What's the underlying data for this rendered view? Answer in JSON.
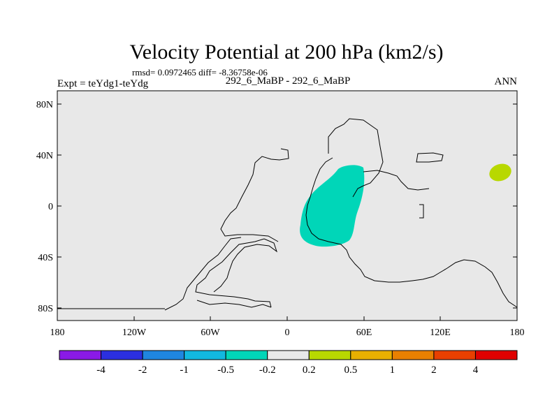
{
  "title": "Velocity Potential at 200 hPa (km2/s)",
  "stats": "rmsd= 0.0972465 diff= -8.36758e-06",
  "left_label": "Expt = teYdg1-teYdg",
  "center_label": "292_6_MaBP - 292_6_MaBP",
  "right_label": "ANN",
  "y_ticks": [
    "80N",
    "40N",
    "0",
    "40S",
    "80S"
  ],
  "x_ticks": [
    "180",
    "120W",
    "60W",
    "0",
    "60E",
    "120E",
    "180"
  ],
  "colorbar": {
    "colors": [
      "#8a1ae6",
      "#2b2fe0",
      "#1f86e0",
      "#12b8e0",
      "#00d6b8",
      "#e8e8e8",
      "#b8d800",
      "#e8b000",
      "#e88000",
      "#e84000",
      "#e00000"
    ],
    "labels": [
      "-4",
      "-2",
      "-1",
      "-0.5",
      "-0.2",
      "0.2",
      "0.5",
      "1",
      "2",
      "4"
    ]
  },
  "colors": {
    "ocean": "#e8e8e8",
    "negative_anomaly": "#00d6b8",
    "positive_anomaly": "#b8d800"
  }
}
